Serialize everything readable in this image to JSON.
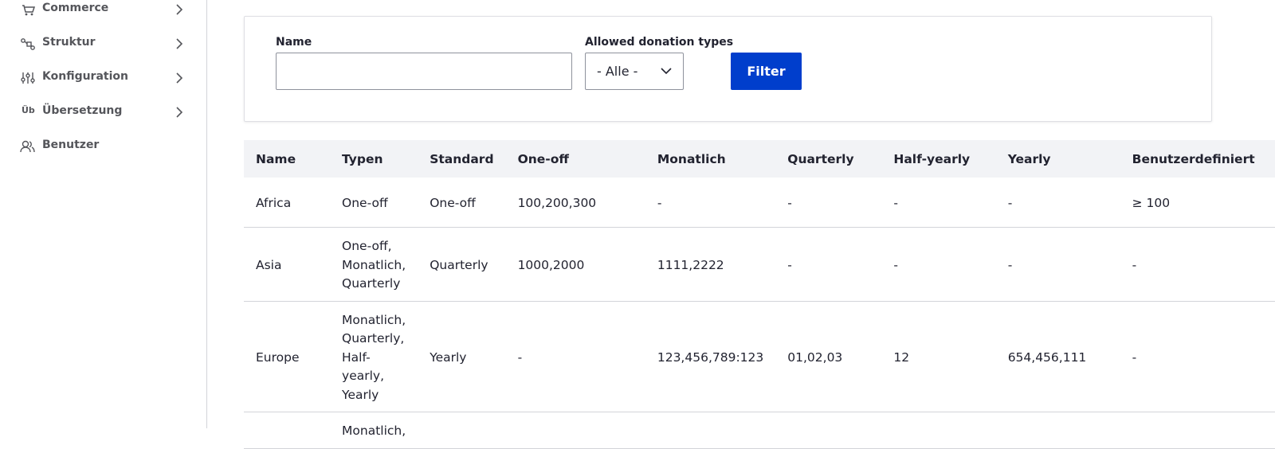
{
  "sidebar": {
    "items": [
      {
        "label": "Commerce",
        "submenu": true
      },
      {
        "label": "Struktur",
        "submenu": true
      },
      {
        "label": "Konfiguration",
        "submenu": true
      },
      {
        "label": "Übersetzung",
        "submenu": true,
        "icon_text": "Üb"
      },
      {
        "label": "Benutzer",
        "submenu": false
      }
    ]
  },
  "filter": {
    "name_label": "Name",
    "types_label": "Allowed donation types",
    "types_value": "- Alle -",
    "button": "Filter"
  },
  "table": {
    "headers": [
      "Name",
      "Typen",
      "Standard",
      "One-off",
      "Monatlich",
      "Quarterly",
      "Half-yearly",
      "Yearly",
      "Benutzerdefiniert"
    ],
    "rows": [
      [
        "Africa",
        "One-off",
        "One-off",
        "100,200,300",
        "-",
        "-",
        "-",
        "-",
        "≥ 100"
      ],
      [
        "Asia",
        "One-off, Monatlich, Quarterly",
        "Quarterly",
        "1000,2000",
        "1111,2222",
        "-",
        "-",
        "-",
        "-"
      ],
      [
        "Europe",
        "Monatlich, Quarterly, Half-yearly, Yearly",
        "Yearly",
        "-",
        "123,456,789:123",
        "01,02,03",
        "12",
        "654,456,111",
        "-"
      ],
      [
        null,
        "Monatlich,",
        null,
        null,
        null,
        null,
        null,
        null,
        null
      ]
    ]
  }
}
